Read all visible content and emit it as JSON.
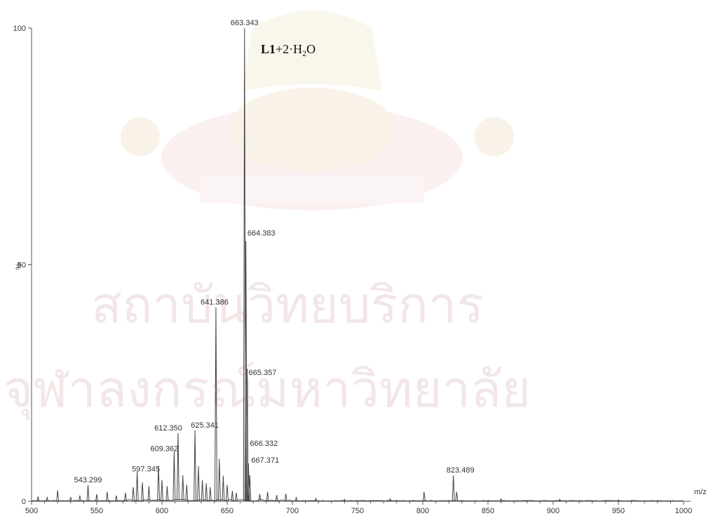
{
  "chart_data": {
    "type": "line",
    "xlabel": "m/z",
    "ylabel": "%",
    "xlim": [
      500,
      1000
    ],
    "ylim": [
      0,
      100
    ],
    "x_ticks": [
      500,
      550,
      600,
      650,
      700,
      750,
      800,
      850,
      900,
      950,
      1000
    ],
    "y_ticks": [
      0,
      50,
      100
    ],
    "peaks": [
      {
        "x": 505,
        "y": 1.0
      },
      {
        "x": 512,
        "y": 0.8
      },
      {
        "x": 520,
        "y": 2.3
      },
      {
        "x": 530,
        "y": 0.9
      },
      {
        "x": 537,
        "y": 1.2
      },
      {
        "x": 543.299,
        "y": 3.4,
        "label": "543.299"
      },
      {
        "x": 550,
        "y": 1.5
      },
      {
        "x": 558,
        "y": 2.0
      },
      {
        "x": 565,
        "y": 1.2
      },
      {
        "x": 572,
        "y": 1.8
      },
      {
        "x": 578,
        "y": 3.0
      },
      {
        "x": 581,
        "y": 6.3
      },
      {
        "x": 585,
        "y": 4.0
      },
      {
        "x": 590,
        "y": 3.2
      },
      {
        "x": 597.345,
        "y": 7.5,
        "label": "597.345"
      },
      {
        "x": 600,
        "y": 4.5
      },
      {
        "x": 604,
        "y": 3.2
      },
      {
        "x": 609.362,
        "y": 10.6,
        "label": "609.362"
      },
      {
        "x": 612.35,
        "y": 14.4,
        "label": "612.350"
      },
      {
        "x": 616,
        "y": 5.5
      },
      {
        "x": 619,
        "y": 3.5
      },
      {
        "x": 625.341,
        "y": 15.0,
        "label": "625.341"
      },
      {
        "x": 628,
        "y": 7.4
      },
      {
        "x": 631,
        "y": 4.5
      },
      {
        "x": 634,
        "y": 3.8
      },
      {
        "x": 637,
        "y": 3.0
      },
      {
        "x": 641.386,
        "y": 41.0,
        "label": "641.386"
      },
      {
        "x": 644,
        "y": 9.0
      },
      {
        "x": 647,
        "y": 5.4
      },
      {
        "x": 650,
        "y": 3.5
      },
      {
        "x": 654,
        "y": 2.2
      },
      {
        "x": 657,
        "y": 1.8
      },
      {
        "x": 663.343,
        "y": 100.0,
        "label": "663.343"
      },
      {
        "x": 664.383,
        "y": 55.0,
        "label": "664.383"
      },
      {
        "x": 665.357,
        "y": 28.0,
        "label": "665.357"
      },
      {
        "x": 666.332,
        "y": 8.0,
        "label": "666.332"
      },
      {
        "x": 667.371,
        "y": 5.5,
        "label": "667.371"
      },
      {
        "x": 675,
        "y": 1.5
      },
      {
        "x": 681,
        "y": 2.0
      },
      {
        "x": 688,
        "y": 1.3
      },
      {
        "x": 695,
        "y": 1.6
      },
      {
        "x": 703,
        "y": 0.8
      },
      {
        "x": 718,
        "y": 0.6
      },
      {
        "x": 740,
        "y": 0.4
      },
      {
        "x": 775,
        "y": 0.5
      },
      {
        "x": 801,
        "y": 2.0
      },
      {
        "x": 823.489,
        "y": 5.5,
        "label": "823.489"
      },
      {
        "x": 826,
        "y": 2.0
      },
      {
        "x": 860,
        "y": 0.5
      },
      {
        "x": 905,
        "y": 0.4
      },
      {
        "x": 950,
        "y": 0.3
      }
    ],
    "annotation": {
      "bold": "L1",
      "text": "+2·H",
      "sub": "2",
      "tail": "O"
    }
  },
  "watermark": {
    "line1": "สถาบันวิทยบริการ",
    "line2": "จุฬาลงกรณ์มหาวิทยาลัย"
  },
  "colors": {
    "trace": "#444444",
    "watermark": "#f3e6e6"
  }
}
